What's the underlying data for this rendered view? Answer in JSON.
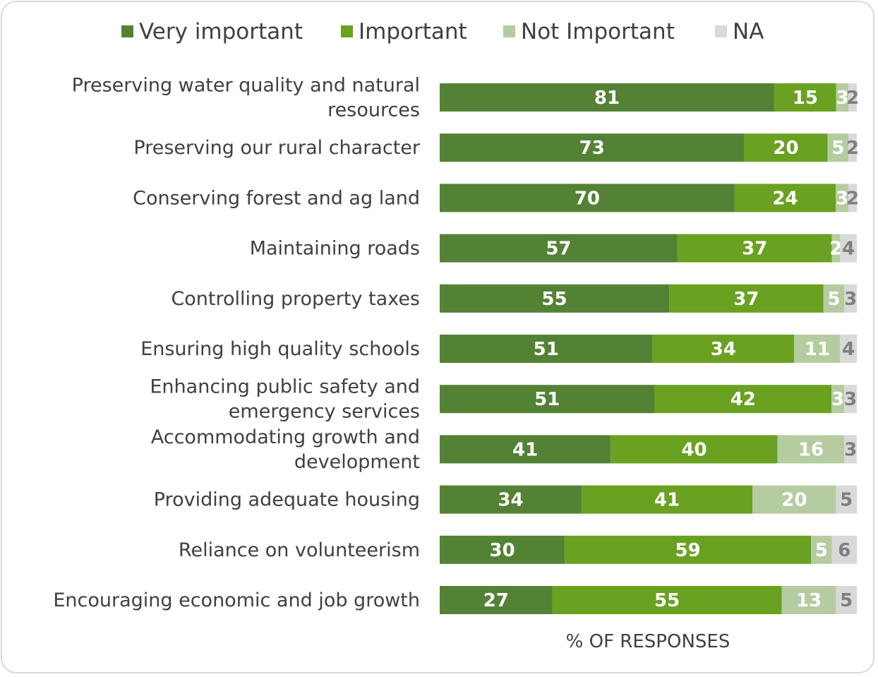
{
  "chart_data": {
    "type": "bar",
    "orientation": "horizontal",
    "stacked": true,
    "xlabel": "% OF RESPONSES",
    "legend_position": "top",
    "categories": [
      [
        "Preserving water quality and natural",
        "resources"
      ],
      [
        "Preserving our rural character"
      ],
      [
        "Conserving forest and ag land"
      ],
      [
        "Maintaining roads"
      ],
      [
        "Controlling property taxes"
      ],
      [
        "Ensuring high quality schools"
      ],
      [
        "Enhancing public safety and",
        "emergency services"
      ],
      [
        "Accommodating growth and",
        "development"
      ],
      [
        "Providing adequate housing"
      ],
      [
        "Reliance on volunteerism"
      ],
      [
        "Encouraging economic and job growth"
      ]
    ],
    "series": [
      {
        "name": "Very important",
        "color": "#548235",
        "label_color": "#ffffff",
        "values": [
          81,
          73,
          70,
          57,
          55,
          51,
          51,
          41,
          34,
          30,
          27
        ]
      },
      {
        "name": "Important",
        "color": "#6aa121",
        "label_color": "#ffffff",
        "values": [
          15,
          20,
          24,
          37,
          37,
          34,
          42,
          40,
          41,
          59,
          55
        ]
      },
      {
        "name": "Not Important",
        "color": "#b5cca1",
        "label_color": "#ffffff",
        "values": [
          3,
          5,
          3,
          2,
          5,
          11,
          3,
          16,
          20,
          5,
          13
        ]
      },
      {
        "name": "NA",
        "color": "#d9d9d9",
        "label_color": "#7f7f7f",
        "values": [
          2,
          2,
          2,
          4,
          3,
          4,
          3,
          3,
          5,
          6,
          5
        ]
      }
    ]
  }
}
